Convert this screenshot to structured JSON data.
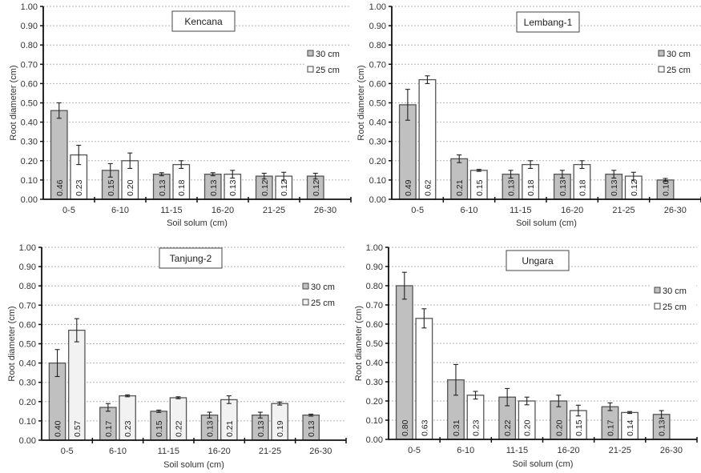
{
  "chart_data": [
    {
      "type": "bar",
      "title": "Kencana",
      "xlabel": "Soil solum (cm)",
      "ylabel": "Root diameter (cm)",
      "ylim": [
        0,
        1.0
      ],
      "yticks": [
        "0.00",
        "0.10",
        "0.20",
        "0.30",
        "0.40",
        "0.50",
        "0.60",
        "0.70",
        "0.80",
        "0.90",
        "1.00"
      ],
      "grid": true,
      "legend_position": "top-right",
      "categories": [
        "0-5",
        "6-10",
        "11-15",
        "16-20",
        "21-25",
        "26-30"
      ],
      "series": [
        {
          "name": "30 cm",
          "color": "#c0c0c0",
          "values": [
            0.46,
            0.15,
            0.13,
            0.13,
            0.12,
            0.12
          ],
          "labels": [
            "0.46",
            "0.15",
            "0.13",
            "0.13",
            "0.12",
            "0.12"
          ],
          "errors": [
            0.04,
            0.035,
            0.008,
            0.008,
            0.015,
            0.015
          ]
        },
        {
          "name": "25 cm",
          "color": "#ffffff",
          "values": [
            0.23,
            0.2,
            0.18,
            0.13,
            0.12,
            null
          ],
          "labels": [
            "0.23",
            "0.20",
            "0.18",
            "0.13",
            "0.12",
            ""
          ],
          "errors": [
            0.05,
            0.04,
            0.02,
            0.02,
            0.02,
            null
          ]
        }
      ]
    },
    {
      "type": "bar",
      "title": "Lembang-1",
      "xlabel": "Soil solum (cm)",
      "ylabel": "Root diameter (cm)",
      "ylim": [
        0,
        1.0
      ],
      "yticks": [
        "0.00",
        "0.10",
        "0.20",
        "0.30",
        "0.40",
        "0.50",
        "0.60",
        "0.70",
        "0.80",
        "0.90",
        "1.00"
      ],
      "grid": true,
      "legend_position": "top-right",
      "categories": [
        "0-5",
        "6-10",
        "11-15",
        "16-20",
        "21-25",
        "26-30"
      ],
      "series": [
        {
          "name": "30 cm",
          "color": "#c0c0c0",
          "values": [
            0.49,
            0.21,
            0.13,
            0.13,
            0.13,
            0.1
          ],
          "labels": [
            "0.49",
            "0.21",
            "0.13",
            "0.13",
            "0.13",
            "0.10"
          ],
          "errors": [
            0.08,
            0.02,
            0.02,
            0.02,
            0.02,
            0.008
          ]
        },
        {
          "name": "25 cm",
          "color": "#ffffff",
          "values": [
            0.62,
            0.15,
            0.18,
            0.18,
            0.12,
            null
          ],
          "labels": [
            "0.62",
            "0.15",
            "0.18",
            "0.18",
            "0.12",
            ""
          ],
          "errors": [
            0.02,
            0.005,
            0.02,
            0.02,
            0.02,
            null
          ]
        }
      ]
    },
    {
      "type": "bar",
      "title": "Tanjung-2",
      "xlabel": "Soil solum (cm)",
      "ylabel": "Root diameter (cm)",
      "ylim": [
        0,
        1.0
      ],
      "yticks": [
        "0.00",
        "0.10",
        "0.20",
        "0.30",
        "0.40",
        "0.50",
        "0.60",
        "0.70",
        "0.80",
        "0.90",
        "1.00"
      ],
      "grid": true,
      "legend_position": "top-right",
      "categories": [
        "0-5",
        "6-10",
        "11-15",
        "16-20",
        "21-25",
        "26-30"
      ],
      "series": [
        {
          "name": "30 cm",
          "color": "#c0c0c0",
          "values": [
            0.4,
            0.17,
            0.15,
            0.13,
            0.13,
            0.13
          ],
          "labels": [
            "0.40",
            "0.17",
            "0.15",
            "0.13",
            "0.13",
            "0.13"
          ],
          "errors": [
            0.07,
            0.02,
            0.006,
            0.015,
            0.015,
            0.005
          ]
        },
        {
          "name": "25 cm",
          "color": "#f2f2f2",
          "values": [
            0.57,
            0.23,
            0.22,
            0.21,
            0.19,
            null
          ],
          "labels": [
            "0.57",
            "0.23",
            "0.22",
            "0.21",
            "0.19",
            ""
          ],
          "errors": [
            0.06,
            0.005,
            0.005,
            0.02,
            0.008,
            null
          ]
        }
      ]
    },
    {
      "type": "bar",
      "title": "Ungara",
      "xlabel": "Soil solum (cm)",
      "ylabel": "Root diameter (cm)",
      "ylim": [
        0,
        1.0
      ],
      "yticks": [
        "0.00",
        "0.10",
        "0.20",
        "0.30",
        "0.40",
        "0.50",
        "0.60",
        "0.70",
        "0.80",
        "0.90",
        "1.00"
      ],
      "grid": true,
      "legend_position": "top-right",
      "categories": [
        "0-5",
        "6-10",
        "11-15",
        "16-20",
        "21-25",
        "26-30"
      ],
      "series": [
        {
          "name": "30 cm",
          "color": "#c0c0c0",
          "values": [
            0.8,
            0.31,
            0.22,
            0.2,
            0.17,
            0.13
          ],
          "labels": [
            "0.80",
            "0.31",
            "0.22",
            "0.20",
            "0.17",
            "0.13"
          ],
          "errors": [
            0.07,
            0.08,
            0.045,
            0.03,
            0.02,
            0.02
          ]
        },
        {
          "name": "25 cm",
          "color": "#ffffff",
          "values": [
            0.63,
            0.23,
            0.2,
            0.15,
            0.14,
            null
          ],
          "labels": [
            "0.63",
            "0.23",
            "0.20",
            "0.15",
            "0.14",
            ""
          ],
          "errors": [
            0.05,
            0.02,
            0.02,
            0.028,
            0.005,
            null
          ]
        }
      ]
    }
  ]
}
